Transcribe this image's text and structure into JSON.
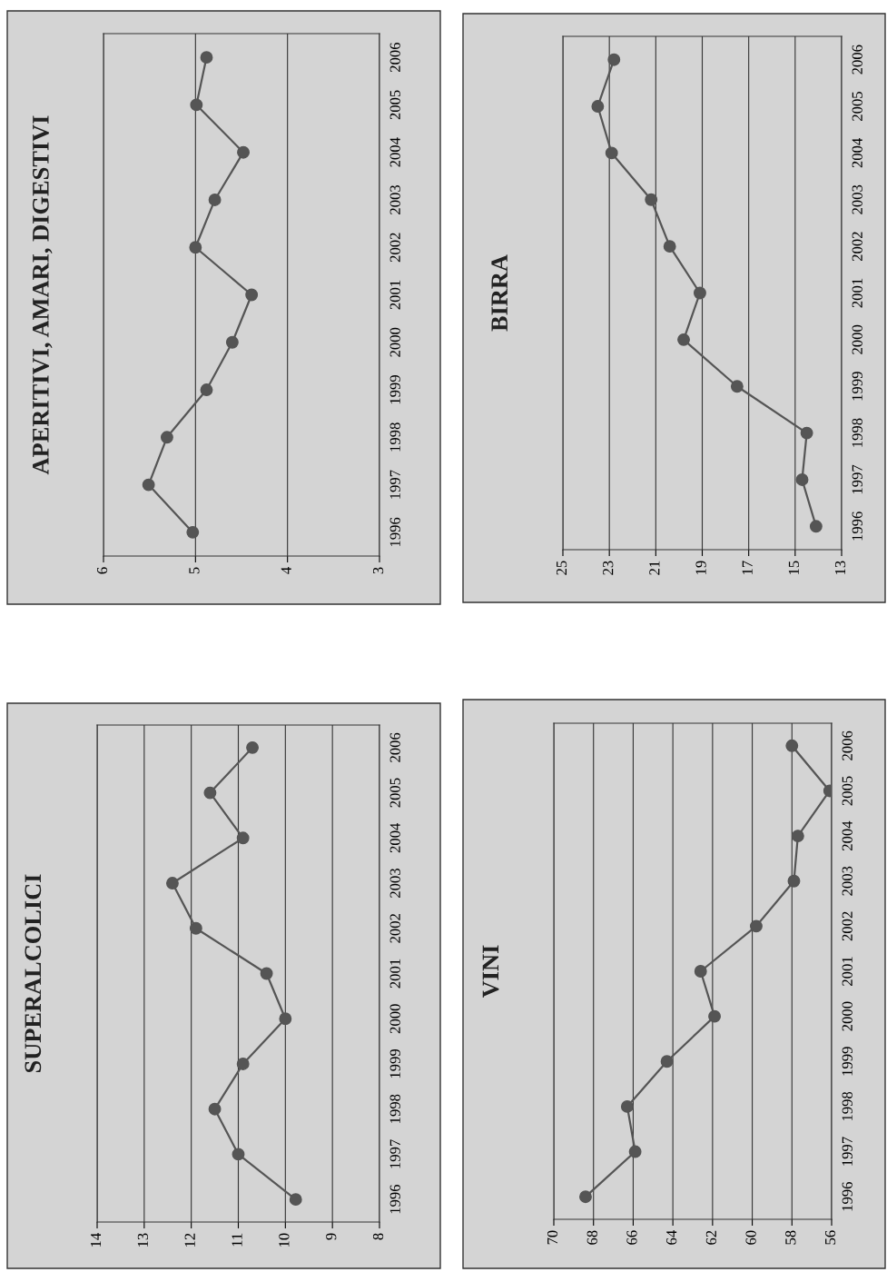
{
  "chart_data": [
    {
      "type": "line",
      "orientation": "horizontal",
      "title": "APERITIVI, AMARI, DIGESTIVI",
      "categories": [
        "2006",
        "2005",
        "2004",
        "2003",
        "2002",
        "2001",
        "2000",
        "1999",
        "1998",
        "1997",
        "1996"
      ],
      "series": [
        {
          "color": "#555555",
          "values": [
            4.88,
            4.99,
            4.48,
            4.79,
            5.0,
            4.39,
            4.6,
            4.88,
            5.31,
            5.51,
            5.03
          ]
        }
      ],
      "xlim": [
        6,
        3
      ],
      "xticks": [
        6,
        5,
        4,
        3
      ],
      "grid": "x",
      "marker": "circle"
    },
    {
      "type": "line",
      "orientation": "horizontal",
      "title": "BIRRA",
      "categories": [
        "2006",
        "2005",
        "2004",
        "2003",
        "2002",
        "2001",
        "2000",
        "1999",
        "1998",
        "1997",
        "1996"
      ],
      "series": [
        {
          "color": "#555555",
          "values": [
            22.8,
            23.5,
            22.9,
            21.2,
            20.4,
            19.1,
            19.8,
            17.5,
            14.5,
            14.7,
            14.1
          ]
        }
      ],
      "xlim": [
        25,
        13
      ],
      "xticks": [
        25,
        23,
        21,
        19,
        17,
        15,
        13
      ],
      "grid": "x",
      "marker": "circle"
    },
    {
      "type": "line",
      "orientation": "horizontal",
      "title": "SUPERALCOLICI",
      "categories": [
        "2006",
        "2005",
        "2004",
        "2003",
        "2002",
        "2001",
        "2000",
        "1999",
        "1998",
        "1997",
        "1996"
      ],
      "series": [
        {
          "color": "#555555",
          "values": [
            10.7,
            11.6,
            10.9,
            12.4,
            11.9,
            10.4,
            10.0,
            10.9,
            11.5,
            11.0,
            9.78
          ]
        }
      ],
      "xlim": [
        14,
        8
      ],
      "xticks": [
        14,
        13,
        12,
        11,
        10,
        9,
        8
      ],
      "grid": "x",
      "marker": "circle"
    },
    {
      "type": "line",
      "orientation": "horizontal",
      "title": "VINI",
      "categories": [
        "2006",
        "2005",
        "2004",
        "2003",
        "2002",
        "2001",
        "2000",
        "1999",
        "1998",
        "1997",
        "1996"
      ],
      "series": [
        {
          "color": "#555555",
          "values": [
            58.0,
            56.1,
            57.7,
            57.9,
            59.8,
            62.6,
            61.9,
            64.3,
            66.3,
            65.9,
            68.4
          ]
        }
      ],
      "xlim": [
        70,
        56
      ],
      "xticks": [
        70,
        68,
        66,
        64,
        62,
        60,
        58,
        56
      ],
      "grid": "x",
      "marker": "circle"
    }
  ]
}
